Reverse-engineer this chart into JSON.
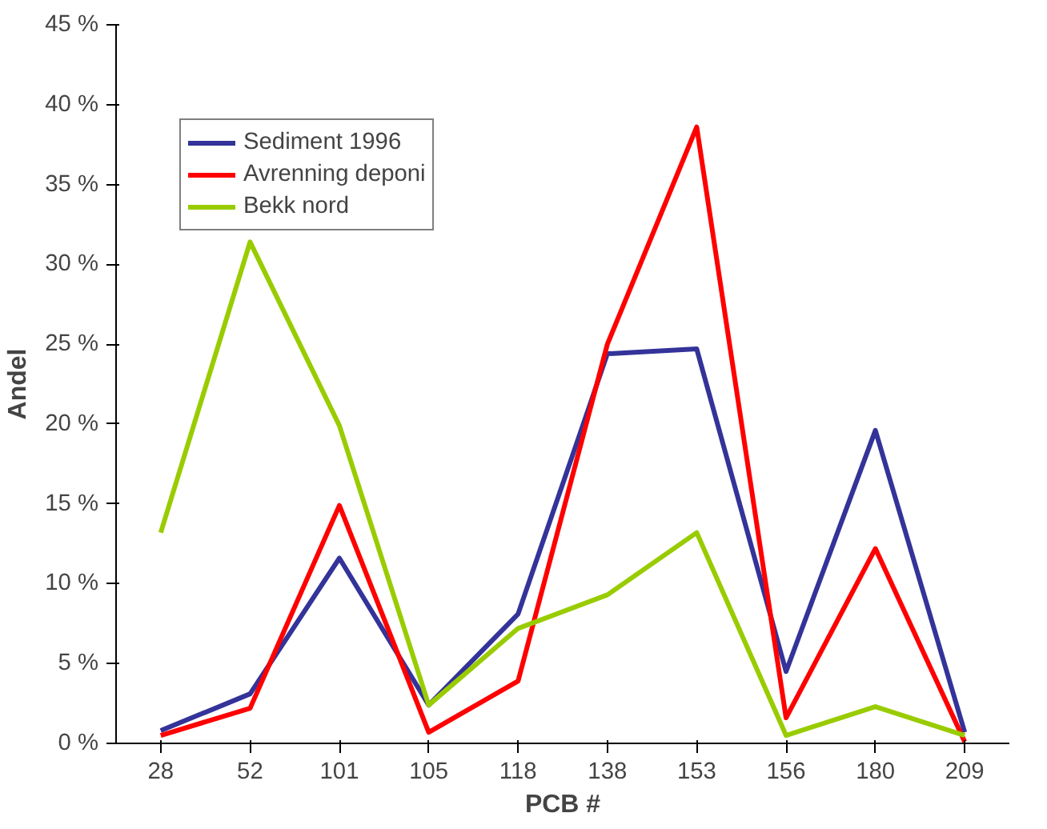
{
  "chart_data": {
    "type": "line",
    "xlabel": "PCB #",
    "ylabel": "Andel",
    "categories": [
      "28",
      "52",
      "101",
      "105",
      "118",
      "138",
      "153",
      "156",
      "180",
      "209"
    ],
    "series": [
      {
        "name": "Sediment 1996",
        "color": "#333399",
        "values": [
          0.8,
          3.1,
          11.6,
          2.4,
          8.1,
          24.4,
          24.7,
          4.5,
          19.6,
          0.7
        ]
      },
      {
        "name": "Avrenning deponi",
        "color": "#ff0000",
        "values": [
          0.5,
          2.2,
          14.9,
          0.7,
          3.9,
          25.0,
          38.6,
          1.6,
          12.2,
          0.1
        ]
      },
      {
        "name": "Bekk nord",
        "color": "#99cc00",
        "values": [
          13.2,
          31.4,
          19.9,
          2.4,
          7.2,
          9.3,
          13.2,
          0.5,
          2.3,
          0.5
        ]
      }
    ],
    "ylim": [
      0,
      45
    ],
    "yticks": [
      {
        "value": 0,
        "label": "0 %"
      },
      {
        "value": 5,
        "label": "5 %"
      },
      {
        "value": 10,
        "label": "10 %"
      },
      {
        "value": 15,
        "label": "15 %"
      },
      {
        "value": 20,
        "label": "20 %"
      },
      {
        "value": 25,
        "label": "25 %"
      },
      {
        "value": 30,
        "label": "30 %"
      },
      {
        "value": 35,
        "label": "35 %"
      },
      {
        "value": 40,
        "label": "40 %"
      },
      {
        "value": 45,
        "label": "45 %"
      }
    ],
    "grid": false,
    "legend": "top left",
    "marker": "none",
    "line_style": "solid"
  }
}
